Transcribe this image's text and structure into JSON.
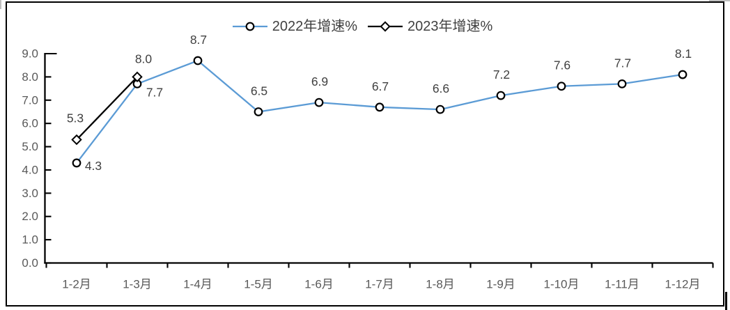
{
  "chart_data": {
    "type": "line",
    "categories": [
      "1-2月",
      "1-3月",
      "1-4月",
      "1-5月",
      "1-6月",
      "1-7月",
      "1-8月",
      "1-9月",
      "1-10月",
      "1-11月",
      "1-12月"
    ],
    "series": [
      {
        "name": "2022年增速%",
        "marker": "circle",
        "color": "#5B9BD5",
        "values": [
          4.3,
          7.7,
          8.7,
          6.5,
          6.9,
          6.7,
          6.6,
          7.2,
          7.6,
          7.7,
          8.1
        ],
        "labels": [
          "4.3",
          "7.7",
          "8.7",
          "6.5",
          "6.9",
          "6.7",
          "6.6",
          "7.2",
          "7.6",
          "7.7",
          "8.1"
        ]
      },
      {
        "name": "2023年增速%",
        "marker": "diamond",
        "color": "#000000",
        "values": [
          5.3,
          8.0,
          null,
          null,
          null,
          null,
          null,
          null,
          null,
          null,
          null
        ],
        "labels": [
          "5.3",
          "8.0"
        ]
      }
    ],
    "title": "",
    "xlabel": "",
    "ylabel": "",
    "ylim": [
      0,
      9
    ],
    "ytick_step": 1.0,
    "ytick_labels": [
      "0.0",
      "1.0",
      "2.0",
      "3.0",
      "4.0",
      "5.0",
      "6.0",
      "7.0",
      "8.0",
      "9.0"
    ],
    "grid": false,
    "data_labels": true,
    "legend_position": "top",
    "colors": {
      "series_2022": "#5B9BD5",
      "series_2023": "#000000",
      "marker_outline": "#000000",
      "axis": "#000000",
      "tick_label": "#595959",
      "data_label": "#404040",
      "legend_text": "#404040",
      "frame_border": "#000000"
    }
  }
}
